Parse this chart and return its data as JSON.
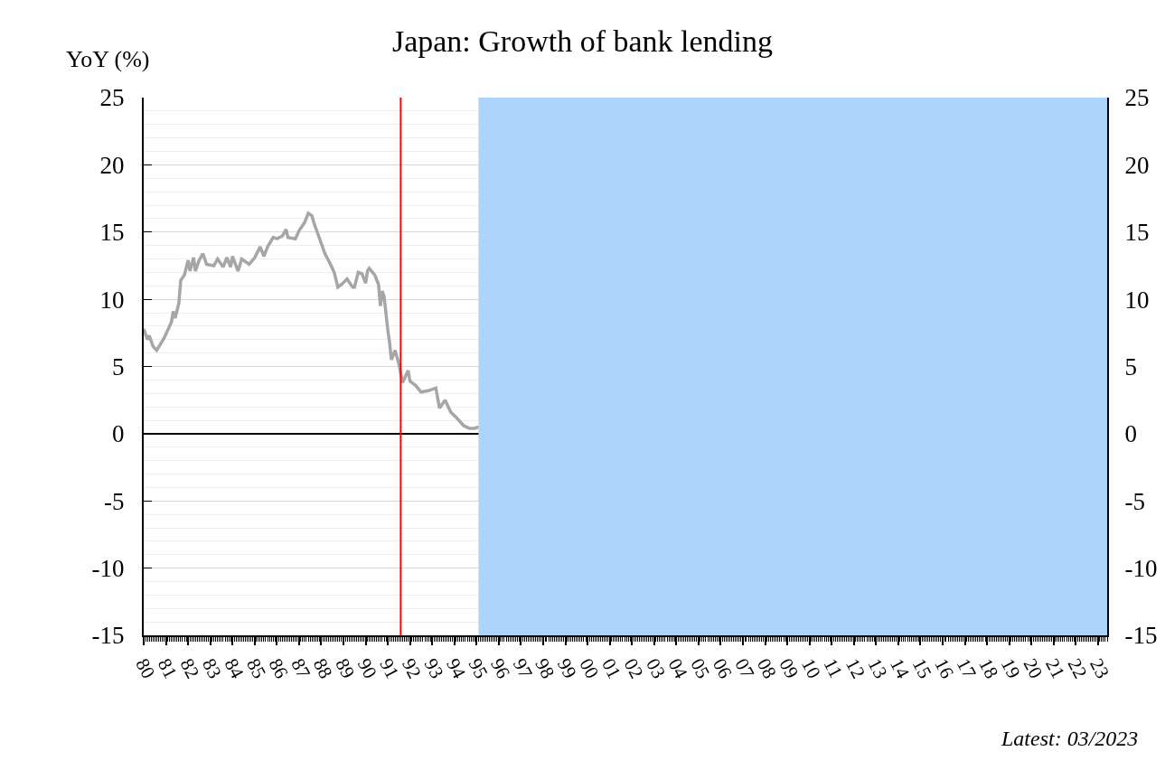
{
  "chart_data": {
    "type": "line",
    "title": "Japan: Growth of bank lending",
    "ylabel": "YoY (%)",
    "x": [
      "1980-01",
      "1980-03",
      "1980-04",
      "1980-06",
      "1980-08",
      "1980-12",
      "1981-04",
      "1981-05",
      "1981-06",
      "1981-08",
      "1981-09",
      "1981-11",
      "1982-01",
      "1982-02",
      "1982-04",
      "1982-05",
      "1982-07",
      "1982-09",
      "1982-11",
      "1983-03",
      "1983-05",
      "1983-08",
      "1983-10",
      "1983-12",
      "1984-01",
      "1984-04",
      "1984-06",
      "1984-10",
      "1985-01",
      "1985-04",
      "1985-06",
      "1985-08",
      "1985-11",
      "1986-01",
      "1986-04",
      "1986-06",
      "1986-07",
      "1986-11",
      "1987-01",
      "1987-04",
      "1987-06",
      "1987-08",
      "1987-09",
      "1988-03",
      "1988-06",
      "1988-08",
      "1988-10",
      "1988-12",
      "1989-03",
      "1989-06",
      "1989-07",
      "1989-09",
      "1989-11",
      "1990-01",
      "1990-02",
      "1990-03",
      "1990-06",
      "1990-08",
      "1990-09",
      "1990-10",
      "1990-11",
      "1991-01",
      "1991-02",
      "1991-03",
      "1991-05",
      "1991-07",
      "1991-09",
      "1991-12",
      "1992-01",
      "1992-04",
      "1992-07",
      "1992-11",
      "1993-03",
      "1993-05",
      "1993-08",
      "1993-11",
      "1994-02",
      "1994-06",
      "1994-09",
      "1994-12",
      "1995-02"
    ],
    "values": [
      7.8,
      7.0,
      7.3,
      6.5,
      6.2,
      7.1,
      8.3,
      9.1,
      8.6,
      9.7,
      11.4,
      11.8,
      12.9,
      12.1,
      13.1,
      12.1,
      12.9,
      13.4,
      12.6,
      12.5,
      13.0,
      12.4,
      13.1,
      12.4,
      13.2,
      12.1,
      13.0,
      12.6,
      13.1,
      13.9,
      13.2,
      13.9,
      14.6,
      14.5,
      14.7,
      15.2,
      14.6,
      14.5,
      15.1,
      15.7,
      16.4,
      16.2,
      15.7,
      13.4,
      12.6,
      12.0,
      10.9,
      11.1,
      11.5,
      10.9,
      10.9,
      12.0,
      11.9,
      11.2,
      12.1,
      12.3,
      11.8,
      11.1,
      9.5,
      10.6,
      10.2,
      7.7,
      6.7,
      5.5,
      6.2,
      5.2,
      3.8,
      4.7,
      3.9,
      3.6,
      3.1,
      3.2,
      3.4,
      1.9,
      2.5,
      1.6,
      1.2,
      0.6,
      0.4,
      0.4,
      0.5
    ],
    "color": "#a6a6a6",
    "xlim": [
      "1980-01",
      "2023-06"
    ],
    "xticks": [
      {
        "value": "1980",
        "label": "80"
      },
      {
        "value": "1981",
        "label": "81"
      },
      {
        "value": "1982",
        "label": "82"
      },
      {
        "value": "1983",
        "label": "83"
      },
      {
        "value": "1984",
        "label": "84"
      },
      {
        "value": "1985",
        "label": "85"
      },
      {
        "value": "1986",
        "label": "86"
      },
      {
        "value": "1987",
        "label": "87"
      },
      {
        "value": "1988",
        "label": "88"
      },
      {
        "value": "1989",
        "label": "89"
      },
      {
        "value": "1990",
        "label": "90"
      },
      {
        "value": "1991",
        "label": "91"
      },
      {
        "value": "1992",
        "label": "92"
      },
      {
        "value": "1993",
        "label": "93"
      },
      {
        "value": "1994",
        "label": "94"
      },
      {
        "value": "1995",
        "label": "95"
      },
      {
        "value": "1996",
        "label": "96"
      },
      {
        "value": "1997",
        "label": "97"
      },
      {
        "value": "1998",
        "label": "98"
      },
      {
        "value": "1999",
        "label": "99"
      },
      {
        "value": "2000",
        "label": "00"
      },
      {
        "value": "2001",
        "label": "01"
      },
      {
        "value": "2002",
        "label": "02"
      },
      {
        "value": "2003",
        "label": "03"
      },
      {
        "value": "2004",
        "label": "04"
      },
      {
        "value": "2005",
        "label": "05"
      },
      {
        "value": "2006",
        "label": "06"
      },
      {
        "value": "2007",
        "label": "07"
      },
      {
        "value": "2008",
        "label": "08"
      },
      {
        "value": "2009",
        "label": "09"
      },
      {
        "value": "2010",
        "label": "10"
      },
      {
        "value": "2011",
        "label": "11"
      },
      {
        "value": "2012",
        "label": "12"
      },
      {
        "value": "2013",
        "label": "13"
      },
      {
        "value": "2014",
        "label": "14"
      },
      {
        "value": "2015",
        "label": "15"
      },
      {
        "value": "2016",
        "label": "16"
      },
      {
        "value": "2017",
        "label": "17"
      },
      {
        "value": "2018",
        "label": "18"
      },
      {
        "value": "2019",
        "label": "19"
      },
      {
        "value": "2020",
        "label": "20"
      },
      {
        "value": "2021",
        "label": "21"
      },
      {
        "value": "2022",
        "label": "22"
      },
      {
        "value": "2023",
        "label": "23"
      }
    ],
    "ylim": [
      -15,
      25
    ],
    "yticks": [
      -15,
      -10,
      -5,
      0,
      5,
      10,
      15,
      20,
      25
    ],
    "y2lim": [
      -15,
      25
    ],
    "y2ticks": [
      -15,
      -10,
      -5,
      0,
      5,
      10,
      15,
      20,
      25
    ],
    "grid": "y",
    "ref_lines": [
      {
        "axis": "x",
        "value": "1991-08",
        "color": "#ff0000"
      }
    ],
    "bands": [
      {
        "axis": "x",
        "from": "1995-02",
        "to": "2023-06",
        "color": "#add5fc"
      }
    ],
    "annotations": [
      "Latest: 03/2023"
    ]
  }
}
